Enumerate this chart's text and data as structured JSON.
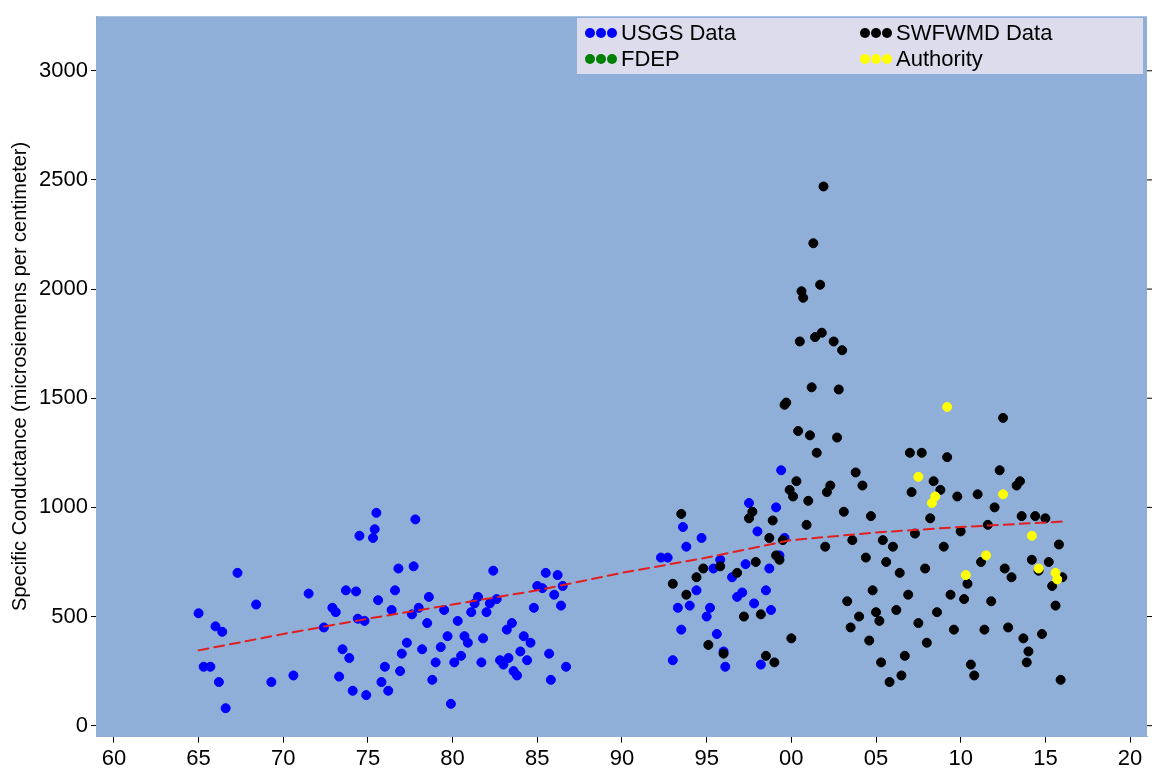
{
  "chart_data": {
    "type": "scatter",
    "ylabel": "Specific Conductance (microsiemens per centimeter)",
    "xlim": [
      1959,
      2021
    ],
    "ylim": [
      -50,
      3250
    ],
    "xticks": [
      {
        "value": 1960,
        "label": "60"
      },
      {
        "value": 1965,
        "label": "65"
      },
      {
        "value": 1970,
        "label": "70"
      },
      {
        "value": 1975,
        "label": "75"
      },
      {
        "value": 1980,
        "label": "80"
      },
      {
        "value": 1985,
        "label": "85"
      },
      {
        "value": 1990,
        "label": "90"
      },
      {
        "value": 1995,
        "label": "95"
      },
      {
        "value": 2000,
        "label": "00"
      },
      {
        "value": 2005,
        "label": "05"
      },
      {
        "value": 2010,
        "label": "10"
      },
      {
        "value": 2015,
        "label": "15"
      },
      {
        "value": 2020,
        "label": "20"
      }
    ],
    "yticks": [
      0,
      500,
      1000,
      1500,
      2000,
      2500,
      3000
    ],
    "grid": false,
    "legend": "top right",
    "marker": "circle",
    "series": [
      {
        "name": "USGS Data",
        "color": "#0000ff",
        "x": [
          1965.0,
          1965.3,
          1965.7,
          1966.0,
          1966.2,
          1966.4,
          1966.6,
          1967.3,
          1968.4,
          1969.3,
          1970.6,
          1971.5,
          1972.4,
          1972.9,
          1973.1,
          1973.3,
          1973.5,
          1973.7,
          1973.9,
          1974.1,
          1974.3,
          1974.4,
          1974.5,
          1974.8,
          1974.9,
          1975.3,
          1975.4,
          1975.5,
          1975.6,
          1975.8,
          1976.0,
          1976.2,
          1976.4,
          1976.6,
          1976.8,
          1976.9,
          1977.0,
          1977.3,
          1977.6,
          1977.7,
          1977.8,
          1978.0,
          1978.2,
          1978.5,
          1978.6,
          1978.8,
          1979.0,
          1979.3,
          1979.5,
          1979.7,
          1979.9,
          1980.1,
          1980.3,
          1980.5,
          1980.7,
          1980.9,
          1981.1,
          1981.3,
          1981.5,
          1981.7,
          1981.8,
          1982.0,
          1982.2,
          1982.4,
          1982.6,
          1982.8,
          1983.0,
          1983.2,
          1983.3,
          1983.5,
          1983.6,
          1983.8,
          1984.0,
          1984.2,
          1984.4,
          1984.6,
          1984.8,
          1985.0,
          1985.3,
          1985.5,
          1985.7,
          1985.8,
          1986.0,
          1986.2,
          1986.4,
          1986.5,
          1986.7,
          1992.3,
          1992.7,
          1993.0,
          1993.3,
          1993.5,
          1993.6,
          1993.8,
          1994.0,
          1994.4,
          1994.7,
          1995.0,
          1995.2,
          1995.4,
          1995.6,
          1995.8,
          1996.0,
          1996.1,
          1996.5,
          1996.8,
          1997.1,
          1997.3,
          1997.5,
          1997.8,
          1998.0,
          1998.2,
          1998.5,
          1998.7,
          1998.8,
          1999.1,
          1999.4,
          1999.6,
          1999.3
        ],
        "values": [
          515,
          270,
          270,
          455,
          200,
          430,
          80,
          700,
          555,
          200,
          230,
          605,
          450,
          540,
          520,
          225,
          350,
          620,
          310,
          160,
          615,
          490,
          870,
          480,
          140,
          860,
          900,
          975,
          575,
          200,
          270,
          160,
          530,
          620,
          720,
          250,
          330,
          380,
          510,
          730,
          945,
          540,
          350,
          470,
          590,
          210,
          290,
          360,
          530,
          410,
          100,
          290,
          480,
          320,
          410,
          380,
          520,
          560,
          590,
          290,
          400,
          520,
          560,
          710,
          580,
          300,
          280,
          440,
          310,
          470,
          250,
          230,
          340,
          410,
          300,
          380,
          540,
          640,
          630,
          700,
          330,
          210,
          600,
          690,
          550,
          640,
          270,
          770,
          770,
          300,
          540,
          440,
          910,
          820,
          550,
          620,
          860,
          500,
          540,
          720,
          420,
          760,
          340,
          270,
          680,
          590,
          610,
          740,
          1020,
          560,
          890,
          280,
          620,
          720,
          530,
          1000,
          1170,
          860,
          780
        ]
      },
      {
        "name": "SWFWMD Data",
        "color": "#000000",
        "x": [
          1993.0,
          1993.5,
          1993.8,
          1994.4,
          1994.8,
          1995.1,
          1995.8,
          1996.0,
          1996.8,
          1997.2,
          1997.5,
          1997.7,
          1997.9,
          1998.2,
          1998.5,
          1998.7,
          1998.9,
          1999.0,
          1999.1,
          1999.3,
          1999.5,
          1999.6,
          1999.7,
          1999.9,
          2000.0,
          2000.1,
          2000.3,
          2000.4,
          2000.5,
          2000.6,
          2000.7,
          2000.9,
          2001.0,
          2001.1,
          2001.2,
          2001.3,
          2001.4,
          2001.5,
          2001.7,
          2001.8,
          2001.9,
          2002.0,
          2002.1,
          2002.3,
          2002.5,
          2002.7,
          2002.8,
          2003.0,
          2003.1,
          2003.3,
          2003.5,
          2003.6,
          2003.8,
          2004.0,
          2004.2,
          2004.4,
          2004.6,
          2004.7,
          2004.8,
          2005.0,
          2005.2,
          2005.3,
          2005.4,
          2005.6,
          2005.8,
          2006.0,
          2006.2,
          2006.4,
          2006.5,
          2006.7,
          2006.9,
          2007.0,
          2007.1,
          2007.3,
          2007.5,
          2007.7,
          2007.9,
          2008.0,
          2008.2,
          2008.4,
          2008.6,
          2008.8,
          2009.0,
          2009.2,
          2009.4,
          2009.6,
          2009.8,
          2010.0,
          2010.2,
          2010.4,
          2010.6,
          2010.8,
          2011.0,
          2011.2,
          2011.4,
          2011.6,
          2011.8,
          2012.0,
          2012.3,
          2012.5,
          2012.6,
          2012.8,
          2013.0,
          2013.3,
          2013.5,
          2013.6,
          2013.7,
          2013.9,
          2014.0,
          2014.2,
          2014.4,
          2014.6,
          2014.8,
          2015.0,
          2015.2,
          2015.4,
          2015.6,
          2015.8,
          2015.9,
          2016.0
        ],
        "values": [
          650,
          970,
          600,
          680,
          720,
          370,
          730,
          330,
          700,
          500,
          950,
          980,
          750,
          510,
          320,
          860,
          940,
          290,
          780,
          760,
          850,
          1470,
          1480,
          1080,
          400,
          1050,
          1120,
          1350,
          1760,
          1990,
          1960,
          920,
          1030,
          1330,
          1550,
          2210,
          1780,
          1250,
          2020,
          1800,
          2470,
          820,
          1070,
          1100,
          1760,
          1320,
          1540,
          1720,
          980,
          570,
          450,
          850,
          1160,
          500,
          1100,
          770,
          390,
          960,
          620,
          520,
          480,
          290,
          850,
          750,
          200,
          820,
          530,
          700,
          230,
          320,
          600,
          1250,
          1070,
          880,
          470,
          1250,
          720,
          380,
          950,
          1120,
          520,
          1080,
          820,
          1230,
          600,
          440,
          1050,
          890,
          580,
          650,
          280,
          230,
          1060,
          750,
          440,
          920,
          570,
          1000,
          1170,
          1410,
          720,
          450,
          680,
          1100,
          1120,
          960,
          400,
          290,
          340,
          760,
          960,
          710,
          420,
          950,
          750,
          640,
          550,
          830,
          210,
          680
        ]
      },
      {
        "name": "FDEP",
        "color": "#008000"
      },
      {
        "name": "Authority",
        "color": "#ffff00",
        "x": [
          2007.5,
          2008.3,
          2008.5,
          2009.2,
          2010.3,
          2011.5,
          2012.5,
          2014.2,
          2014.6,
          2015.6,
          2015.7
        ],
        "values": [
          1140,
          1020,
          1050,
          1460,
          690,
          780,
          1060,
          870,
          720,
          700,
          670
        ]
      },
      {
        "type": "line",
        "color": "#e02020",
        "line_style": "dashed",
        "marker": "none",
        "x": [
          1965,
          1970,
          1975,
          1980,
          1985,
          1990,
          1995,
          2000,
          2005,
          2010,
          2016
        ],
        "values": [
          345,
          420,
          490,
          555,
          620,
          700,
          770,
          850,
          885,
          910,
          935
        ]
      }
    ]
  }
}
